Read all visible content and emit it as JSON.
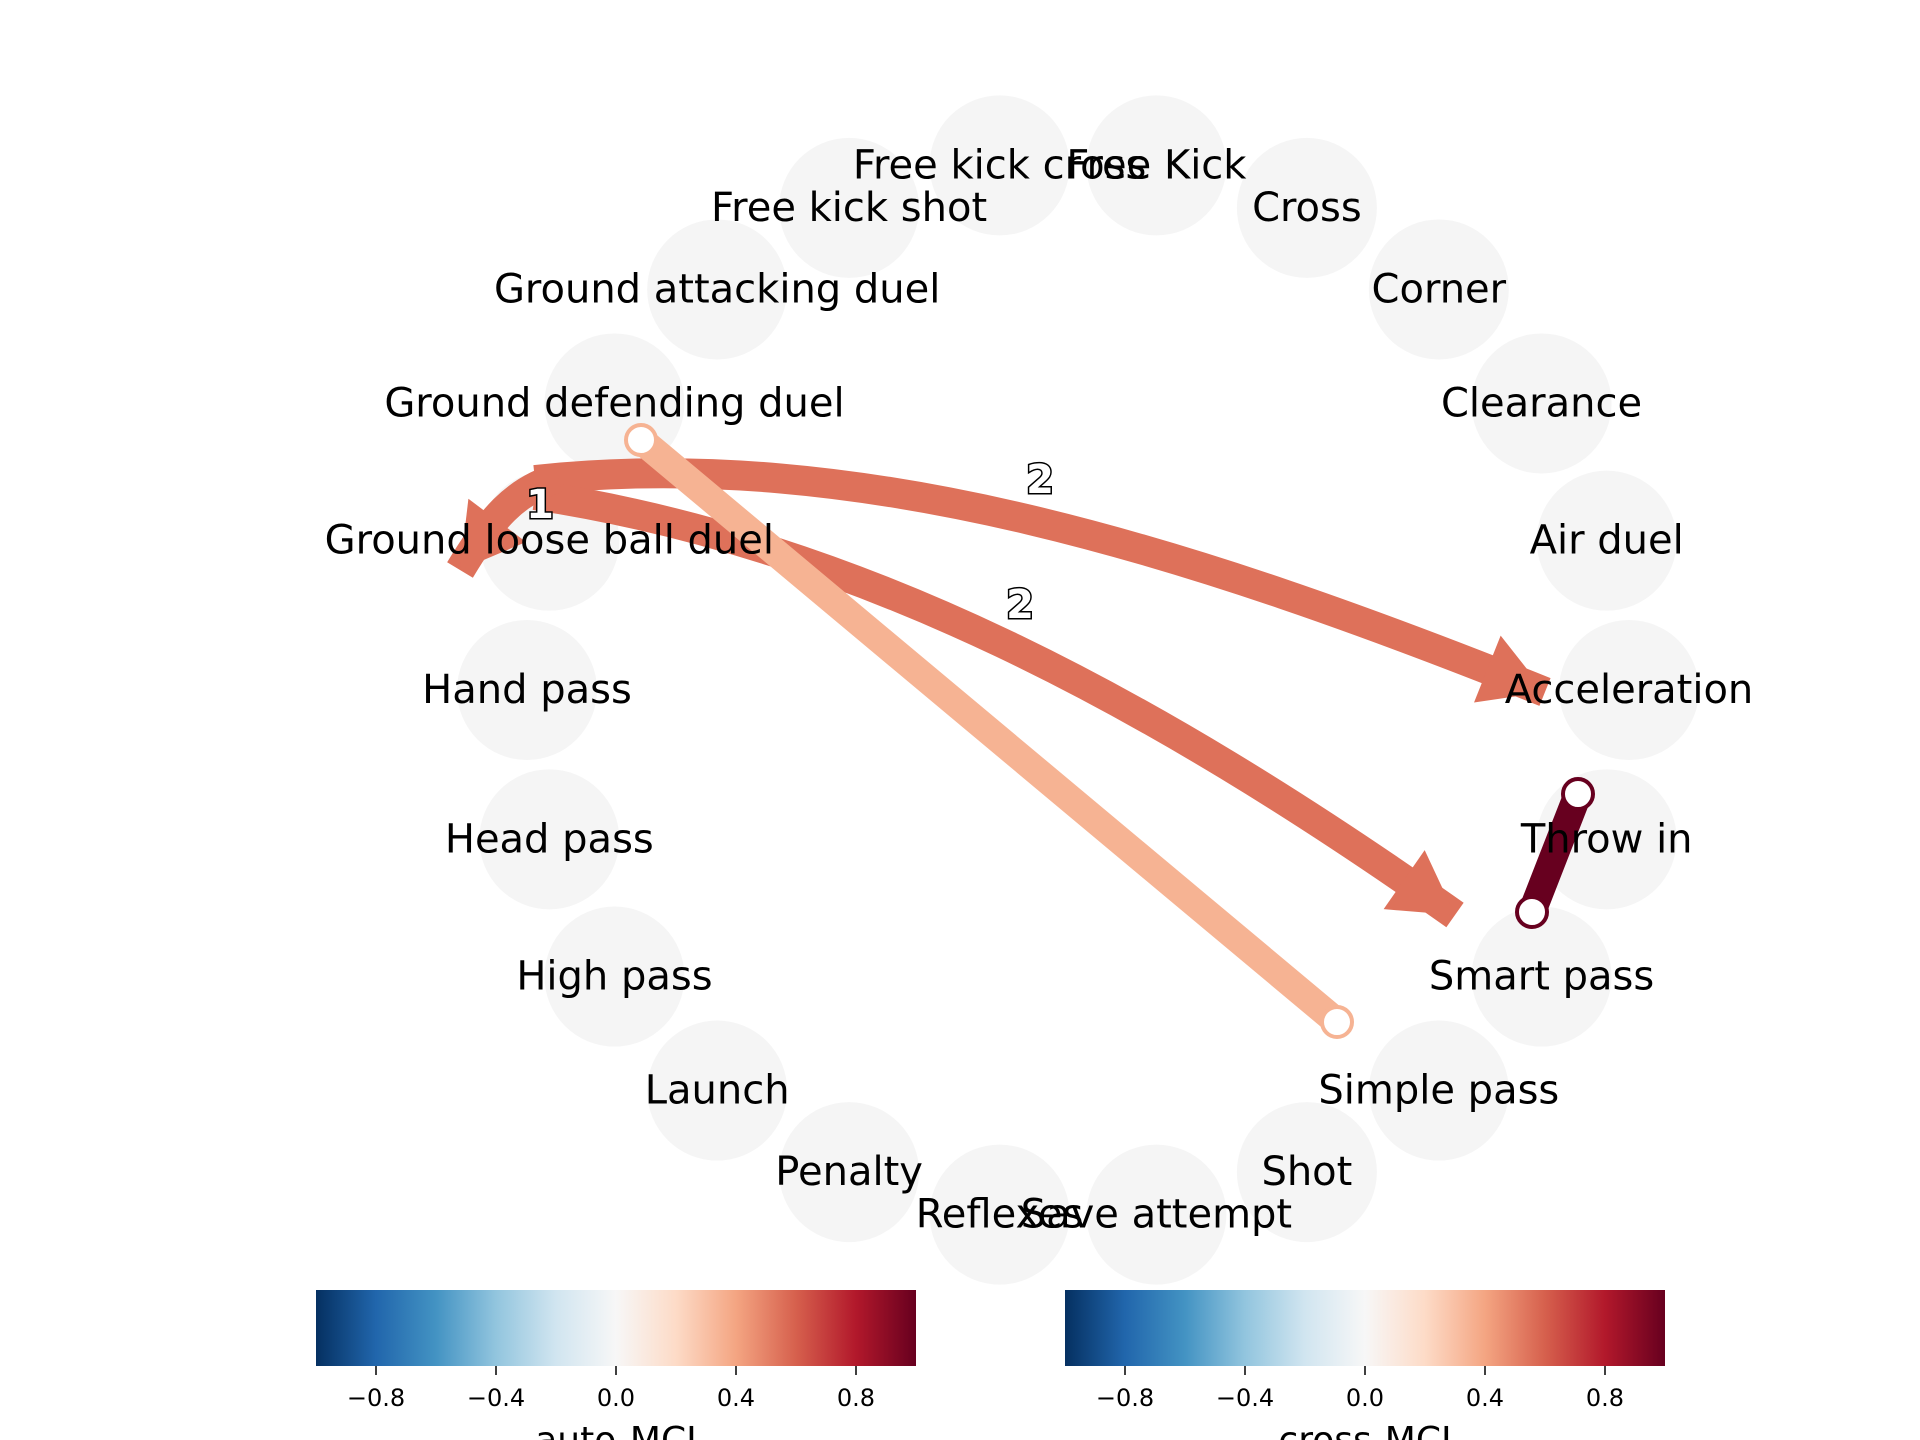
{
  "colormap": {
    "name": "RdBu_r",
    "stops": [
      "#053061",
      "#2166ac",
      "#4393c3",
      "#92c5de",
      "#d1e5f0",
      "#f7f7f7",
      "#fddbc7",
      "#f4a582",
      "#d6604d",
      "#b2182b",
      "#67001f"
    ]
  },
  "node_fill": "#f5f5f5",
  "nodes": [
    {
      "id": "free-kick",
      "label": "Free Kick"
    },
    {
      "id": "cross",
      "label": "Cross"
    },
    {
      "id": "corner",
      "label": "Corner"
    },
    {
      "id": "clearance",
      "label": "Clearance"
    },
    {
      "id": "air-duel",
      "label": "Air duel"
    },
    {
      "id": "acceleration",
      "label": "Acceleration"
    },
    {
      "id": "throw-in",
      "label": "Throw in"
    },
    {
      "id": "smart-pass",
      "label": "Smart pass"
    },
    {
      "id": "simple-pass",
      "label": "Simple pass"
    },
    {
      "id": "shot",
      "label": "Shot"
    },
    {
      "id": "save-attempt",
      "label": "Save attempt"
    },
    {
      "id": "reflexes",
      "label": "Reflexes"
    },
    {
      "id": "penalty",
      "label": "Penalty"
    },
    {
      "id": "launch",
      "label": "Launch"
    },
    {
      "id": "high-pass",
      "label": "High pass"
    },
    {
      "id": "head-pass",
      "label": "Head pass"
    },
    {
      "id": "hand-pass",
      "label": "Hand pass"
    },
    {
      "id": "ground-loose-ball-duel",
      "label": "Ground loose ball duel"
    },
    {
      "id": "ground-defending-duel",
      "label": "Ground defending duel"
    },
    {
      "id": "ground-attacking-duel",
      "label": "Ground attacking duel"
    },
    {
      "id": "free-kick-shot",
      "label": "Free kick shot"
    },
    {
      "id": "free-kick-cross",
      "label": "Free kick cross"
    }
  ],
  "edges": [
    {
      "id": "gdd-to-acceleration",
      "from": "ground-defending-duel",
      "to": "acceleration",
      "directed": true,
      "value": 0.55,
      "lag_label": "2"
    },
    {
      "id": "gdd-to-smart-pass",
      "from": "ground-defending-duel",
      "to": "smart-pass",
      "directed": true,
      "value": 0.55,
      "lag_label": "2"
    },
    {
      "id": "gdd-self-loop",
      "from": "ground-defending-duel",
      "to": "ground-loose-ball-duel",
      "directed": true,
      "value": 0.55,
      "lag_label": "1"
    },
    {
      "id": "gad-simple-pass",
      "from": "ground-attacking-duel",
      "to": "simple-pass",
      "directed": false,
      "value": 0.35,
      "lag_label": ""
    },
    {
      "id": "acceleration-smart-pass",
      "from": "acceleration",
      "to": "smart-pass",
      "directed": false,
      "value": 1.0,
      "lag_label": ""
    }
  ],
  "colorbars": [
    {
      "id": "auto-mci",
      "title": "auto-MCI",
      "vmin": -1,
      "vmax": 1,
      "ticks": [
        "−0.8",
        "−0.4",
        "0.0",
        "0.4",
        "0.8"
      ],
      "tick_values": [
        -0.8,
        -0.4,
        0.0,
        0.4,
        0.8
      ]
    },
    {
      "id": "cross-mci",
      "title": "cross-MCI",
      "vmin": -1,
      "vmax": 1,
      "ticks": [
        "−0.8",
        "−0.4",
        "0.0",
        "0.4",
        "0.8"
      ],
      "tick_values": [
        -0.8,
        -0.4,
        0.0,
        0.4,
        0.8
      ]
    }
  ]
}
